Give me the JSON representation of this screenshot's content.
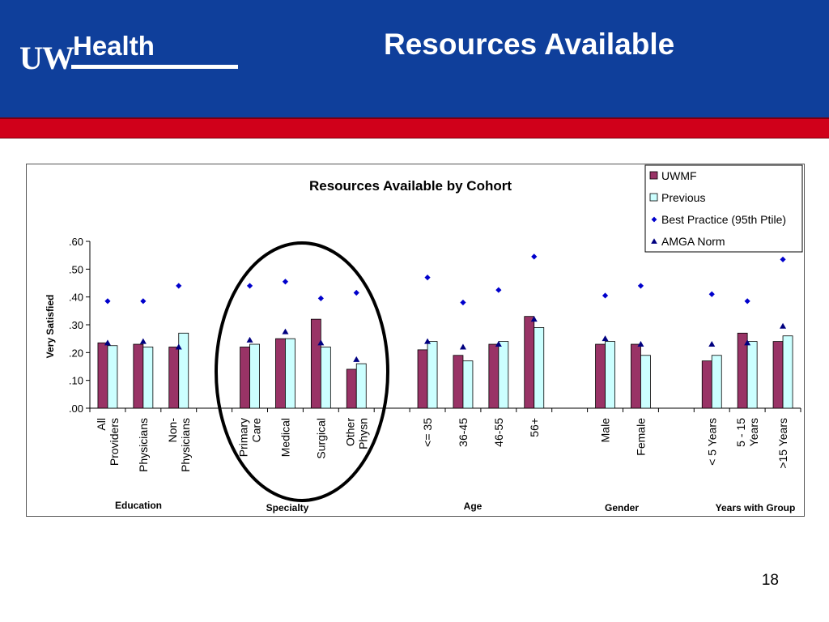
{
  "slide": {
    "title": "Resources Available",
    "page_number": "18",
    "logo": {
      "part1": "UW",
      "part2": "Health"
    }
  },
  "colors": {
    "header_blue": "#0f3f9b",
    "band_red": "#d0001a",
    "uwmf": "#993366",
    "previous": "#ccffff",
    "marker_blue": "#0000cc",
    "marker_navy": "#000080"
  },
  "chart_data": {
    "type": "bar",
    "title": "Resources Available by Cohort",
    "ylabel": "Very Satisfied",
    "ylim": [
      0,
      0.6
    ],
    "yticks": [
      ".00",
      ".10",
      ".20",
      ".30",
      ".40",
      ".50",
      ".60"
    ],
    "ytick_values": [
      0,
      0.1,
      0.2,
      0.3,
      0.4,
      0.5,
      0.6
    ],
    "legend_position": "top-right",
    "categories": [
      {
        "label": [
          "All",
          "Providers"
        ]
      },
      {
        "label": [
          "Physicians"
        ]
      },
      {
        "label": [
          "Non-",
          "Physicians"
        ]
      },
      {
        "label": []
      },
      {
        "label": [
          "Primary",
          "Care"
        ]
      },
      {
        "label": [
          "Medical"
        ]
      },
      {
        "label": [
          "Surgical"
        ]
      },
      {
        "label": [
          "Other",
          "Physn"
        ]
      },
      {
        "label": []
      },
      {
        "label": [
          "<= 35"
        ]
      },
      {
        "label": [
          "36-45"
        ]
      },
      {
        "label": [
          "46-55"
        ]
      },
      {
        "label": [
          "56+"
        ]
      },
      {
        "label": []
      },
      {
        "label": [
          "Male"
        ]
      },
      {
        "label": [
          "Female"
        ]
      },
      {
        "label": []
      },
      {
        "label": [
          "< 5 Years"
        ]
      },
      {
        "label": [
          "5 - 15",
          "Years"
        ]
      },
      {
        "label": [
          ">15 Years"
        ]
      }
    ],
    "series": [
      {
        "name": "UWMF",
        "kind": "bar",
        "values": [
          0.235,
          0.23,
          0.22,
          null,
          0.22,
          0.25,
          0.32,
          0.14,
          null,
          0.21,
          0.19,
          0.23,
          0.33,
          null,
          0.23,
          0.23,
          null,
          0.17,
          0.27,
          0.24
        ]
      },
      {
        "name": "Previous",
        "kind": "bar",
        "values": [
          0.225,
          0.22,
          0.27,
          null,
          0.23,
          0.25,
          0.22,
          0.16,
          null,
          0.24,
          0.17,
          0.24,
          0.29,
          null,
          0.24,
          0.19,
          null,
          0.19,
          0.24,
          0.26
        ]
      },
      {
        "name": "Best Practice (95th Ptile)",
        "kind": "diamond",
        "values": [
          0.385,
          0.385,
          0.44,
          null,
          0.44,
          0.455,
          0.395,
          0.415,
          null,
          0.47,
          0.38,
          0.425,
          0.545,
          null,
          0.405,
          0.44,
          null,
          0.41,
          0.385,
          0.535
        ]
      },
      {
        "name": "AMGA Norm",
        "kind": "triangle",
        "values": [
          0.235,
          0.24,
          0.22,
          null,
          0.245,
          0.275,
          0.235,
          0.175,
          null,
          0.24,
          0.22,
          0.23,
          0.32,
          null,
          0.25,
          0.23,
          null,
          0.23,
          0.235,
          0.295
        ]
      }
    ],
    "groups": [
      {
        "label": "Education"
      },
      {
        "label": "Specialty"
      },
      {
        "label": "Age"
      },
      {
        "label": "Gender"
      },
      {
        "label": "Years with Group"
      }
    ]
  }
}
